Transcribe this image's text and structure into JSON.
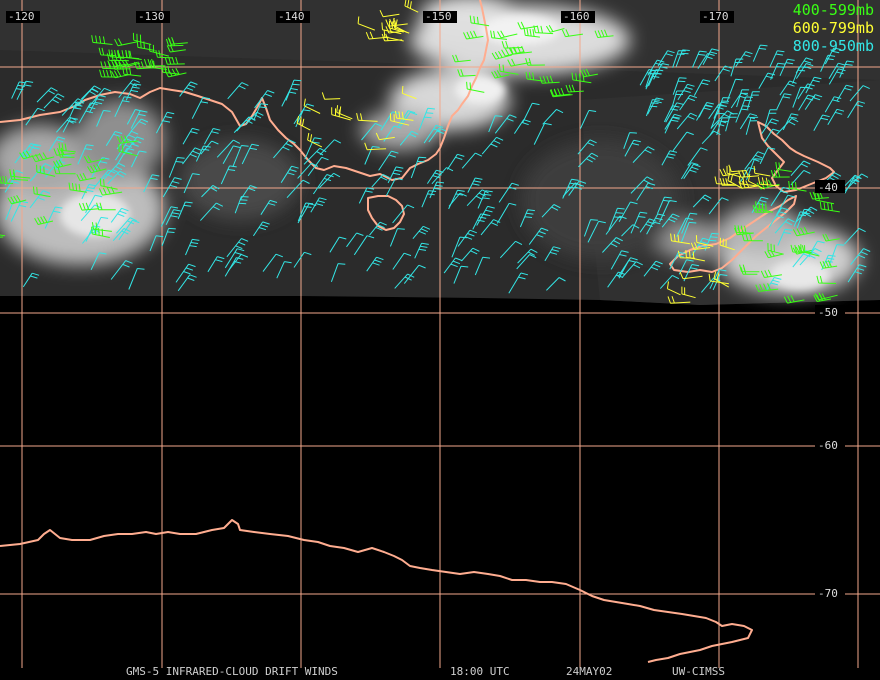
{
  "map": {
    "longitude_labels": [
      "-120",
      "-130",
      "-140",
      "-150",
      "-160",
      "-170"
    ],
    "latitude_labels": [
      "-40",
      "-50",
      "-60",
      "-70"
    ],
    "grid_color": "#f2a88c",
    "coast_color": "#ffad90"
  },
  "legend": [
    {
      "label": "400-599mb",
      "color": "#39ff14"
    },
    {
      "label": "600-799mb",
      "color": "#ffff33"
    },
    {
      "label": "800-950mb",
      "color": "#33e6e6"
    }
  ],
  "footer": {
    "product": "GMS-5 INFRARED-CLOUD DRIFT WINDS",
    "time": "18:00 UTC",
    "date": "24MAY02",
    "source": "UW-CIMSS"
  }
}
